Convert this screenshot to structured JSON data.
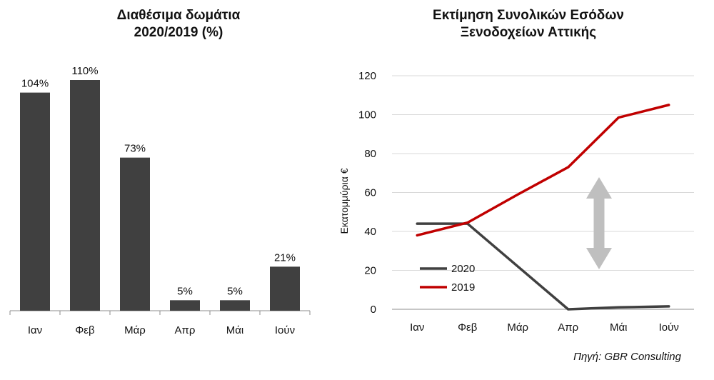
{
  "chart_data": [
    {
      "type": "bar",
      "title_line1": "Διαθέσιμα δωμάτια",
      "title_line2": "2020/2019 (%)",
      "categories": [
        "Ιαν",
        "Φεβ",
        "Μάρ",
        "Απρ",
        "Μάι",
        "Ιούν"
      ],
      "values": [
        104,
        110,
        73,
        5,
        5,
        21
      ],
      "value_labels": [
        "104%",
        "110%",
        "73%",
        "5%",
        "5%",
        "21%"
      ],
      "ylim": [
        0,
        110
      ],
      "bar_color": "#404040",
      "grid": false
    },
    {
      "type": "line",
      "title_line1": "Εκτίμηση Συνολικών Εσόδων",
      "title_line2": "Ξενοδοχείων Αττικής",
      "ylabel": "Εκατομμύρια €",
      "categories": [
        "Ιαν",
        "Φεβ",
        "Μάρ",
        "Απρ",
        "Μάι",
        "Ιούν"
      ],
      "yticks": [
        "0",
        "20",
        "40",
        "60",
        "80",
        "100",
        "120"
      ],
      "ylim": [
        0,
        120
      ],
      "grid": true,
      "legend_position": "bottom-left",
      "series": [
        {
          "name": "2020",
          "values": [
            44,
            44,
            22,
            0,
            1,
            1.5
          ],
          "color": "#404040"
        },
        {
          "name": "2019",
          "values": [
            38,
            44.5,
            59,
            73,
            98.5,
            105
          ],
          "color": "#c00000"
        }
      ],
      "annotation": "double-arrow-icon",
      "annotation_color": "#bfbfbf"
    }
  ],
  "source": "Πηγή: GBR Consulting"
}
